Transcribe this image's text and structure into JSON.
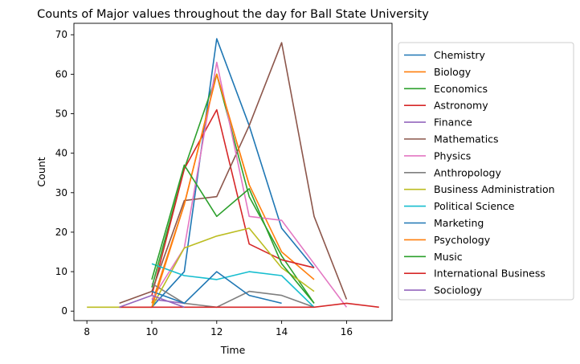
{
  "chart_data": {
    "type": "line",
    "title": "Counts of Major values throughout the day for Ball State University",
    "xlabel": "Time",
    "ylabel": "Count",
    "xlim": [
      7.6,
      17.4
    ],
    "ylim": [
      -2.4,
      72.9
    ],
    "xticks": [
      8,
      10,
      12,
      14,
      16
    ],
    "yticks": [
      0,
      10,
      20,
      30,
      40,
      50,
      60,
      70
    ],
    "grid": false,
    "legend_position": "right",
    "series": [
      {
        "name": "Chemistry",
        "color": "#1f77b4",
        "x": [
          10,
          11,
          12,
          13,
          14,
          15
        ],
        "y": [
          1,
          10,
          69,
          47,
          21,
          11
        ]
      },
      {
        "name": "Biology",
        "color": "#ff7f0e",
        "x": [
          10,
          11,
          12,
          13,
          14,
          15
        ],
        "y": [
          2,
          27,
          60,
          32,
          15,
          8
        ]
      },
      {
        "name": "Economics",
        "color": "#2ca02c",
        "x": [
          10,
          11,
          12,
          13,
          14,
          15
        ],
        "y": [
          6,
          36,
          60,
          29,
          14,
          2
        ]
      },
      {
        "name": "Astronomy",
        "color": "#d62728",
        "x": [
          10,
          11,
          12,
          13,
          14,
          15
        ],
        "y": [
          4,
          36,
          51,
          17,
          13,
          11
        ]
      },
      {
        "name": "Finance",
        "color": "#9467bd",
        "x": [
          10,
          11
        ],
        "y": [
          3,
          2
        ]
      },
      {
        "name": "Mathematics",
        "color": "#8c564b",
        "x": [
          9,
          10,
          11,
          12,
          13,
          14,
          15,
          16
        ],
        "y": [
          2,
          5,
          28,
          29,
          47,
          68,
          24,
          3
        ]
      },
      {
        "name": "Physics",
        "color": "#e377c2",
        "x": [
          10,
          11,
          12,
          13,
          14,
          15,
          16
        ],
        "y": [
          3,
          16,
          63,
          24,
          23,
          12,
          1
        ]
      },
      {
        "name": "Anthropology",
        "color": "#7f7f7f",
        "x": [
          10,
          11,
          12,
          13,
          14,
          15
        ],
        "y": [
          7,
          2,
          1,
          5,
          4,
          1
        ]
      },
      {
        "name": "Business Administration",
        "color": "#bcbd22",
        "x": [
          8,
          9,
          10,
          11,
          12,
          13,
          14,
          15
        ],
        "y": [
          1,
          1,
          1,
          16,
          19,
          21,
          11,
          5
        ]
      },
      {
        "name": "Political Science",
        "color": "#17becf",
        "x": [
          10,
          11,
          12,
          13,
          14,
          15
        ],
        "y": [
          12,
          9,
          8,
          10,
          9,
          1
        ]
      },
      {
        "name": "Marketing",
        "color": "#1f77b4",
        "x": [
          10,
          11,
          12,
          13,
          14
        ],
        "y": [
          5,
          2,
          10,
          4,
          2
        ]
      },
      {
        "name": "Psychology",
        "color": "#ff7f0e",
        "x": [
          10,
          11,
          12,
          13
        ],
        "y": [
          1,
          27,
          60,
          32
        ]
      },
      {
        "name": "Music",
        "color": "#2ca02c",
        "x": [
          10,
          11,
          12,
          13,
          14,
          15
        ],
        "y": [
          8,
          37,
          24,
          31,
          12,
          2
        ]
      },
      {
        "name": "International Business",
        "color": "#d62728",
        "x": [
          9,
          10,
          11,
          12,
          13,
          14,
          15,
          16,
          17
        ],
        "y": [
          1,
          1,
          1,
          1,
          1,
          1,
          1,
          2,
          1
        ]
      },
      {
        "name": "Sociology",
        "color": "#9467bd",
        "x": [
          9,
          10,
          11
        ],
        "y": [
          1,
          4,
          1
        ]
      }
    ]
  }
}
